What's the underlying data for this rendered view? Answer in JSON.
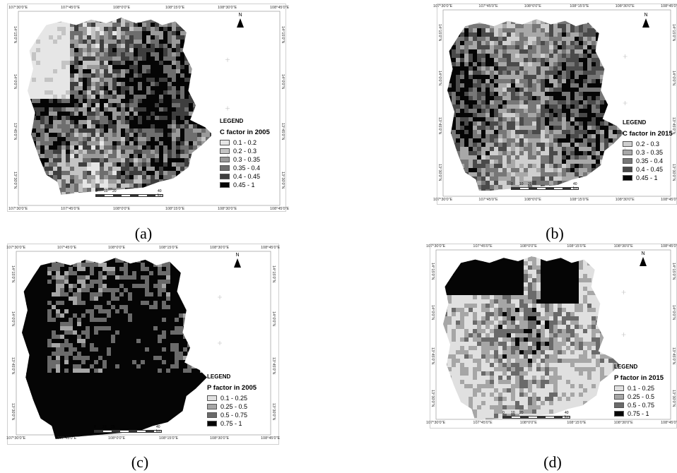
{
  "panels": [
    {
      "caption": "(a)",
      "legend_heading": "LEGEND",
      "legend_title": "C factor in 2005",
      "classes": [
        {
          "label": "0.1 - 0.2",
          "color": "#e6e6e6"
        },
        {
          "label": "0.2 - 0.3",
          "color": "#c4c4c4"
        },
        {
          "label": "0.3 - 0.35",
          "color": "#9a9a9a"
        },
        {
          "label": "0.35 - 0.4",
          "color": "#6e6e6e"
        },
        {
          "label": "0.4 - 0.45",
          "color": "#3e3e3e"
        },
        {
          "label": "0.45 - 1",
          "color": "#050505"
        }
      ],
      "lon_labels": [
        "107°30'0\"E",
        "107°45'0\"E",
        "108°0'0\"E",
        "108°15'0\"E",
        "108°30'0\"E",
        "108°45'0\"E"
      ],
      "lat_labels": [
        "14°15'0\"N",
        "14°0'0\"N",
        "13°45'0\"N",
        "13°30'0\"N"
      ],
      "north": "N",
      "scale": [
        "0",
        "10",
        "20",
        "40 km"
      ]
    },
    {
      "caption": "(b)",
      "legend_heading": "LEGEND",
      "legend_title": "C factor in 2015",
      "classes": [
        {
          "label": "0.2 - 0.3",
          "color": "#cfcfcf"
        },
        {
          "label": "0.3 - 0.35",
          "color": "#a8a8a8"
        },
        {
          "label": "0.35 - 0.4",
          "color": "#777777"
        },
        {
          "label": "0.4 - 0.45",
          "color": "#4a4a4a"
        },
        {
          "label": "0.45 - 1",
          "color": "#050505"
        }
      ],
      "lon_labels": [
        "107°30'0\"E",
        "107°45'0\"E",
        "108°0'0\"E",
        "108°15'0\"E",
        "108°30'0\"E",
        "108°45'0\"E"
      ],
      "lat_labels": [
        "14°15'0\"N",
        "14°0'0\"N",
        "13°45'0\"N",
        "13°30'0\"N"
      ],
      "north": "N",
      "scale": [
        "0",
        "10",
        "20",
        "40 km"
      ]
    },
    {
      "caption": "(c)",
      "legend_heading": "LEGEND",
      "legend_title": "P factor in 2005",
      "classes": [
        {
          "label": "0.1 - 0.25",
          "color": "#e0e0e0"
        },
        {
          "label": "0.25 - 0.5",
          "color": "#a6a6a6"
        },
        {
          "label": "0.5 - 0.75",
          "color": "#6a6a6a"
        },
        {
          "label": "0.75 - 1",
          "color": "#050505"
        }
      ],
      "lon_labels": [
        "107°30'0\"E",
        "107°45'0\"E",
        "108°0'0\"E",
        "108°15'0\"E",
        "108°30'0\"E",
        "108°45'0\"E"
      ],
      "lat_labels": [
        "14°15'0\"N",
        "14°0'0\"N",
        "13°45'0\"N",
        "13°30'0\"N"
      ],
      "north": "N",
      "scale": [
        "0",
        "10",
        "20",
        "40 km"
      ]
    },
    {
      "caption": "(d)",
      "legend_heading": "LEGEND",
      "legend_title": "P factor in 2015",
      "classes": [
        {
          "label": "0.1 - 0.25",
          "color": "#e0e0e0"
        },
        {
          "label": "0.25 - 0.5",
          "color": "#a6a6a6"
        },
        {
          "label": "0.5 - 0.75",
          "color": "#6a6a6a"
        },
        {
          "label": "0.75 - 1",
          "color": "#050505"
        }
      ],
      "lon_labels": [
        "107°30'0\"E",
        "107°45'0\"E",
        "108°0'0\"E",
        "108°15'0\"E",
        "108°30'0\"E",
        "108°45'0\"E"
      ],
      "lat_labels": [
        "14°15'0\"N",
        "14°0'0\"N",
        "13°45'0\"N",
        "13°30'0\"N"
      ],
      "north": "N",
      "scale": [
        "0",
        "10",
        "20",
        "40 km"
      ]
    }
  ]
}
